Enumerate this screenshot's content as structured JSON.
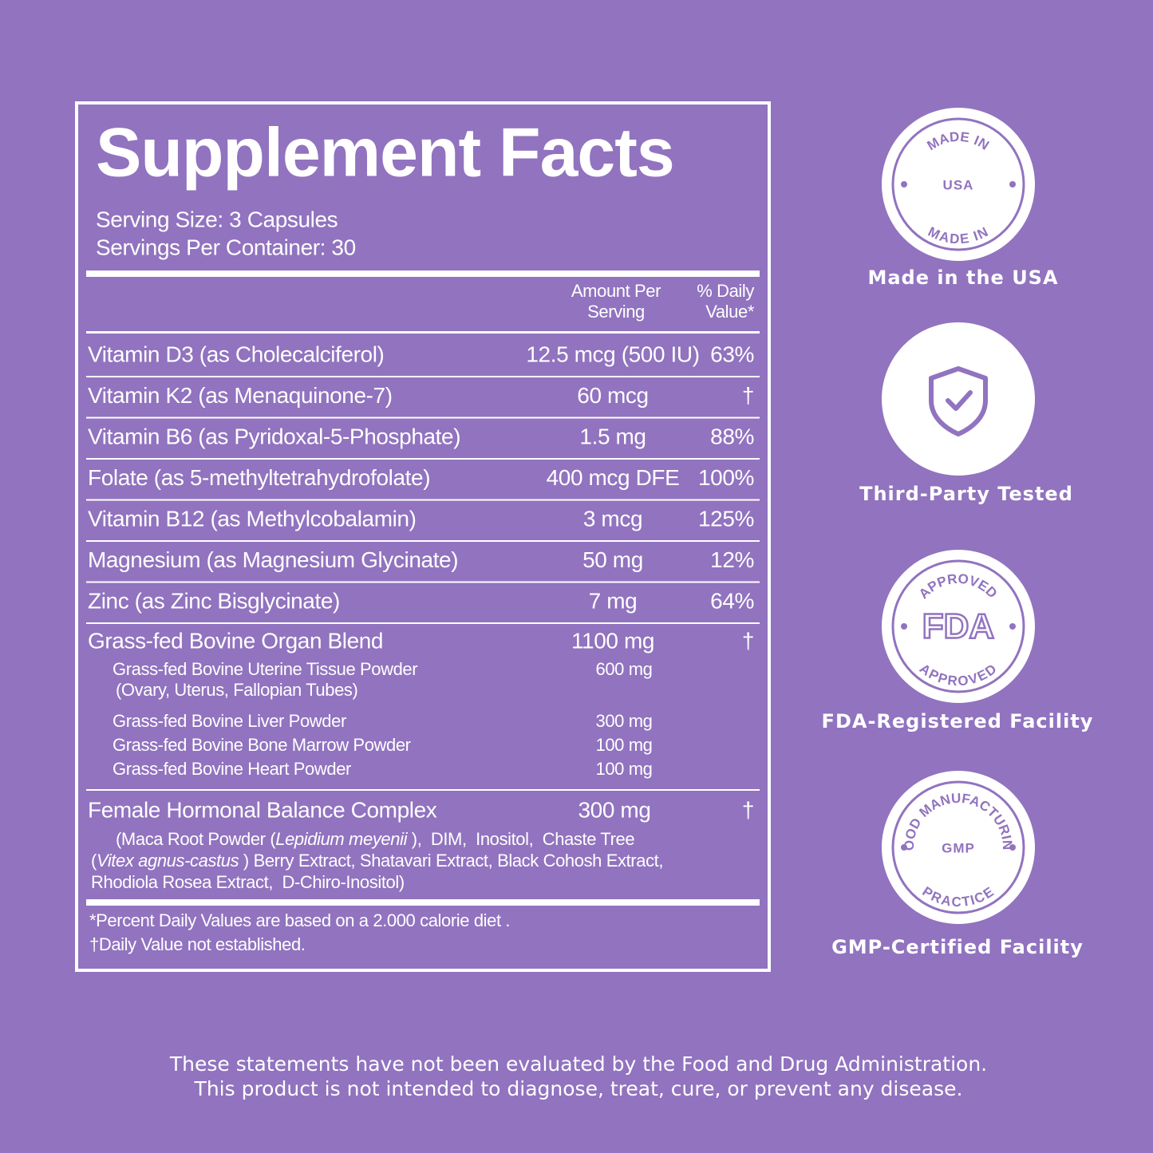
{
  "facts": {
    "title": "Supplement Facts",
    "serving": [
      "Serving Size: 3 Capsules",
      "Servings Per Container: 30"
    ],
    "header": {
      "amount": [
        "Amount Per",
        "Serving"
      ],
      "daily_value": [
        "% Daily",
        "Value*"
      ]
    },
    "rows": [
      {
        "name": "Vitamin D3 (as Cholecalciferol)",
        "amount": "12.5 mcg (500 IU)",
        "daily_value": "63%"
      },
      {
        "name": "Vitamin K2 (as Menaquinone-7)",
        "amount": "60 mcg",
        "daily_value": "†"
      },
      {
        "name": "Vitamin B6 (as Pyridoxal-5-Phosphate)",
        "amount": "1.5 mg",
        "daily_value": "88%"
      },
      {
        "name": "Folate (as 5-methyltetrahydrofolate)",
        "amount": "400 mcg DFE",
        "daily_value": "100%"
      },
      {
        "name": "Vitamin B12 (as Methylcobalamin)",
        "amount": "3 mcg",
        "daily_value": "125%"
      },
      {
        "name": "Magnesium (as Magnesium Glycinate)",
        "amount": "50 mg",
        "daily_value": "12%"
      },
      {
        "name": "Zinc (as Zinc Bisglycinate)",
        "amount": "7 mg",
        "daily_value": "64%"
      }
    ],
    "blend": {
      "name": "Grass-fed Bovine Organ Blend",
      "amount": "1100 mg",
      "daily_value": "†",
      "items": [
        {
          "name": "Grass-fed Bovine Uterine Tissue Powder",
          "note": "(Ovary, Uterus, Fallopian Tubes)",
          "amount": "600 mg"
        },
        {
          "name": "Grass-fed Bovine Liver Powder",
          "amount": "300 mg"
        },
        {
          "name": "Grass-fed Bovine Bone Marrow Powder",
          "amount": "100 mg"
        },
        {
          "name": "Grass-fed Bovine Heart Powder",
          "amount": "100 mg"
        }
      ]
    },
    "complex": {
      "name": "Female Hormonal Balance Complex",
      "amount": "300 mg",
      "daily_value": "†",
      "description": [
        [
          {
            "text": "(Maca Root Powder ("
          },
          {
            "text": "Lepidium meyenii",
            "italic": true
          },
          {
            "text": " ),  DIM,  Inositol,  Chaste Tree"
          }
        ],
        [
          {
            "text": "("
          },
          {
            "text": "Vitex agnus-castus",
            "italic": true
          },
          {
            "text": " ) Berry Extract, Shatavari Extract, Black Cohosh Extract,"
          }
        ],
        [
          {
            "text": "Rhodiola Rosea Extract,  D-Chiro-Inositol)"
          }
        ]
      ]
    },
    "footnotes": [
      "*Percent Daily Values are based on a 2.000 calorie diet .",
      "†Daily Value not established."
    ]
  },
  "badges": [
    {
      "top": "MADE IN",
      "center": "USA",
      "bottom": "MADE IN",
      "label": "Made in the USA"
    },
    {
      "label": "Third-Party Tested"
    },
    {
      "top": "APPROVED",
      "center": "FDA",
      "bottom": "APPROVED",
      "label": "FDA-Registered Facility"
    },
    {
      "top": "GOOD MANUFACTURING",
      "center": "GMP",
      "bottom": "PRACTICE",
      "label": "GMP-Certified Facility"
    }
  ],
  "disclaimer": [
    "These statements have not been evaluated by the Food and Drug Administration.",
    "This product is not intended to diagnose, treat, cure, or prevent any disease."
  ]
}
